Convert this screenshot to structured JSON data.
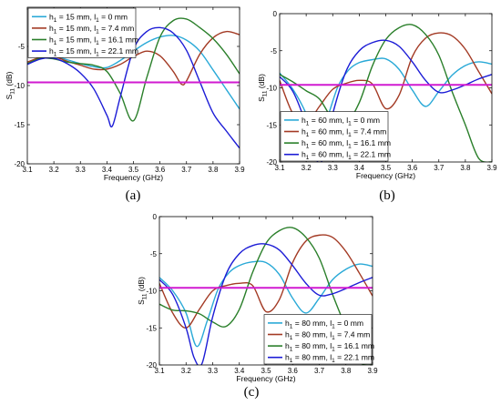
{
  "colors": {
    "cyan": "#29a9d7",
    "red": "#a33a24",
    "green": "#2a7f2a",
    "blue": "#1c1cd6",
    "magenta": "#d11ad1"
  },
  "chart_data": [
    {
      "panel": "(a)",
      "type": "line",
      "xlabel": "Frequency (GHz)",
      "ylabel": "S11 (dB)",
      "xlim": [
        3.1,
        3.9
      ],
      "ylim": [
        -20,
        0
      ],
      "xticks": [
        "3.1",
        "3.2",
        "3.3",
        "3.4",
        "3.5",
        "3.6",
        "3.7",
        "3.8",
        "3.9"
      ],
      "yticks": [
        "-5",
        "-10",
        "-15",
        "-20"
      ],
      "threshold_db": -9.6,
      "legend_position": "top-left",
      "series": [
        {
          "name": "h1 = 15 mm, l1 = 0 mm",
          "color_key": "cyan",
          "x": [
            3.1,
            3.15,
            3.2,
            3.25,
            3.3,
            3.35,
            3.4,
            3.45,
            3.5,
            3.55,
            3.6,
            3.65,
            3.7,
            3.75,
            3.8,
            3.85,
            3.9
          ],
          "y": [
            -7.2,
            -6.4,
            -6.3,
            -6.7,
            -7.2,
            -7.6,
            -7.7,
            -6.8,
            -5.6,
            -4.5,
            -3.8,
            -3.6,
            -4.2,
            -5.6,
            -8.0,
            -10.5,
            -13.0
          ]
        },
        {
          "name": "h1 = 15 mm, l1 = 7.4 mm",
          "color_key": "red",
          "x": [
            3.1,
            3.15,
            3.2,
            3.25,
            3.3,
            3.35,
            3.4,
            3.45,
            3.5,
            3.55,
            3.6,
            3.65,
            3.68,
            3.7,
            3.75,
            3.8,
            3.85,
            3.9
          ],
          "y": [
            -7.0,
            -6.4,
            -6.3,
            -6.9,
            -7.4,
            -7.9,
            -7.9,
            -7.3,
            -6.3,
            -5.6,
            -6.2,
            -8.2,
            -9.8,
            -9.4,
            -6.0,
            -3.9,
            -3.1,
            -3.5
          ]
        },
        {
          "name": "h1 = 15 mm, l1 = 16.1 mm",
          "color_key": "green",
          "x": [
            3.1,
            3.15,
            3.2,
            3.25,
            3.3,
            3.35,
            3.4,
            3.45,
            3.5,
            3.55,
            3.6,
            3.65,
            3.7,
            3.75,
            3.8,
            3.85,
            3.9
          ],
          "y": [
            -7.2,
            -6.5,
            -6.6,
            -7.0,
            -7.2,
            -7.4,
            -8.2,
            -11.0,
            -14.5,
            -9.0,
            -3.8,
            -1.7,
            -1.5,
            -2.6,
            -4.0,
            -6.0,
            -8.5
          ]
        },
        {
          "name": "h1 = 15 mm, l1 = 22.1 mm",
          "color_key": "blue",
          "x": [
            3.1,
            3.15,
            3.2,
            3.25,
            3.3,
            3.35,
            3.4,
            3.42,
            3.45,
            3.5,
            3.55,
            3.6,
            3.65,
            3.7,
            3.75,
            3.8,
            3.85,
            3.9
          ],
          "y": [
            -7.3,
            -6.6,
            -6.5,
            -7.2,
            -8.4,
            -10.4,
            -13.8,
            -15.2,
            -11.5,
            -5.4,
            -3.1,
            -2.6,
            -3.3,
            -5.5,
            -9.5,
            -13.5,
            -15.8,
            -18.0
          ]
        }
      ]
    },
    {
      "panel": "(b)",
      "type": "line",
      "xlabel": "Frequency (GHz)",
      "ylabel": "S11 (dB)",
      "xlim": [
        3.1,
        3.9
      ],
      "ylim": [
        -20,
        0
      ],
      "xticks": [
        "3.1",
        "3.2",
        "3.3",
        "3.4",
        "3.5",
        "3.6",
        "3.7",
        "3.8",
        "3.9"
      ],
      "yticks": [
        "0",
        "-5",
        "-10",
        "-15",
        "-20"
      ],
      "threshold_db": -9.6,
      "legend_position": "bottom-left",
      "series": [
        {
          "name": "h1 = 60 mm, l1 = 0 mm",
          "color_key": "cyan",
          "x": [
            3.1,
            3.15,
            3.2,
            3.24,
            3.28,
            3.32,
            3.36,
            3.4,
            3.45,
            3.5,
            3.55,
            3.6,
            3.65,
            3.7,
            3.75,
            3.8,
            3.85,
            3.9
          ],
          "y": [
            -8.0,
            -10.2,
            -13.5,
            -17.5,
            -14.0,
            -9.8,
            -7.6,
            -6.6,
            -6.2,
            -6.1,
            -7.5,
            -10.3,
            -12.5,
            -10.5,
            -8.3,
            -7.0,
            -6.5,
            -6.8
          ]
        },
        {
          "name": "h1 = 60 mm, l1 = 7.4 mm",
          "color_key": "red",
          "x": [
            3.1,
            3.15,
            3.2,
            3.25,
            3.3,
            3.35,
            3.4,
            3.45,
            3.5,
            3.55,
            3.6,
            3.65,
            3.7,
            3.75,
            3.8,
            3.85,
            3.9
          ],
          "y": [
            -9.0,
            -13.5,
            -14.8,
            -12.5,
            -10.2,
            -9.4,
            -9.0,
            -9.5,
            -12.8,
            -11.0,
            -5.8,
            -3.3,
            -2.6,
            -3.0,
            -4.8,
            -7.8,
            -10.8
          ]
        },
        {
          "name": "h1 = 60 mm, l1 = 16.1 mm",
          "color_key": "green",
          "x": [
            3.1,
            3.15,
            3.2,
            3.25,
            3.3,
            3.35,
            3.4,
            3.45,
            3.5,
            3.55,
            3.6,
            3.65,
            3.7,
            3.75,
            3.8,
            3.85,
            3.9
          ],
          "y": [
            -8.2,
            -9.2,
            -10.4,
            -11.5,
            -14.2,
            -14.8,
            -12.0,
            -7.0,
            -3.5,
            -1.9,
            -1.5,
            -2.8,
            -5.6,
            -10.5,
            -15.0,
            -19.5,
            -20.0
          ]
        },
        {
          "name": "h1 = 60 mm, l1 = 22.1 mm",
          "color_key": "blue",
          "x": [
            3.1,
            3.15,
            3.2,
            3.23,
            3.26,
            3.3,
            3.35,
            3.4,
            3.45,
            3.5,
            3.55,
            3.6,
            3.65,
            3.7,
            3.75,
            3.8,
            3.85,
            3.9
          ],
          "y": [
            -8.5,
            -10.5,
            -15.0,
            -19.0,
            -19.8,
            -13.5,
            -7.8,
            -5.0,
            -3.9,
            -3.6,
            -4.4,
            -6.5,
            -9.0,
            -10.6,
            -10.3,
            -9.6,
            -8.8,
            -8.2
          ]
        }
      ]
    },
    {
      "panel": "(c)",
      "type": "line",
      "xlabel": "Frequency (GHz)",
      "ylabel": "S11 (dB)",
      "xlim": [
        3.1,
        3.9
      ],
      "ylim": [
        -20,
        0
      ],
      "xticks": [
        "3.1",
        "3.2",
        "3.3",
        "3.4",
        "3.5",
        "3.6",
        "3.7",
        "3.8",
        "3.9"
      ],
      "yticks": [
        "0",
        "-5",
        "-10",
        "-15",
        "-20"
      ],
      "threshold_db": -9.6,
      "legend_position": "bottom-right",
      "series": [
        {
          "name": "h1 = 80 mm, l1 = 0 mm",
          "color_key": "cyan",
          "x": [
            3.1,
            3.15,
            3.2,
            3.24,
            3.28,
            3.32,
            3.36,
            3.4,
            3.45,
            3.5,
            3.55,
            3.6,
            3.65,
            3.7,
            3.75,
            3.8,
            3.85,
            3.9
          ],
          "y": [
            -8.2,
            -10.0,
            -13.0,
            -17.5,
            -14.0,
            -9.8,
            -7.6,
            -6.6,
            -6.1,
            -6.2,
            -7.8,
            -11.0,
            -13.0,
            -11.0,
            -8.5,
            -7.1,
            -6.4,
            -6.7
          ]
        },
        {
          "name": "h1 = 80 mm, l1 = 7.4 mm",
          "color_key": "red",
          "x": [
            3.1,
            3.15,
            3.2,
            3.25,
            3.3,
            3.35,
            3.4,
            3.45,
            3.5,
            3.55,
            3.6,
            3.65,
            3.7,
            3.75,
            3.8,
            3.85,
            3.9
          ],
          "y": [
            -9.0,
            -13.0,
            -15.0,
            -12.5,
            -10.0,
            -9.3,
            -9.0,
            -9.3,
            -12.8,
            -11.2,
            -6.2,
            -3.3,
            -2.5,
            -2.8,
            -4.7,
            -7.6,
            -10.7
          ]
        },
        {
          "name": "h1 = 80 mm, l1 = 16.1 mm",
          "color_key": "green",
          "x": [
            3.1,
            3.15,
            3.2,
            3.25,
            3.3,
            3.35,
            3.4,
            3.45,
            3.5,
            3.55,
            3.6,
            3.65,
            3.7,
            3.75,
            3.8,
            3.85,
            3.9
          ],
          "y": [
            -11.8,
            -12.6,
            -12.7,
            -13.1,
            -14.2,
            -14.8,
            -12.5,
            -7.5,
            -3.6,
            -1.9,
            -1.5,
            -2.8,
            -5.6,
            -10.5,
            -15.0,
            -19.5,
            -20.0
          ]
        },
        {
          "name": "h1 = 80 mm, l1 = 22.1 mm",
          "color_key": "blue",
          "x": [
            3.1,
            3.15,
            3.2,
            3.23,
            3.26,
            3.3,
            3.35,
            3.4,
            3.45,
            3.5,
            3.55,
            3.6,
            3.65,
            3.7,
            3.75,
            3.8,
            3.85,
            3.9
          ],
          "y": [
            -8.5,
            -10.5,
            -15.0,
            -19.0,
            -19.8,
            -13.5,
            -7.8,
            -5.0,
            -3.9,
            -3.7,
            -4.5,
            -6.6,
            -9.0,
            -10.6,
            -10.4,
            -9.7,
            -8.9,
            -8.2
          ]
        }
      ]
    }
  ]
}
